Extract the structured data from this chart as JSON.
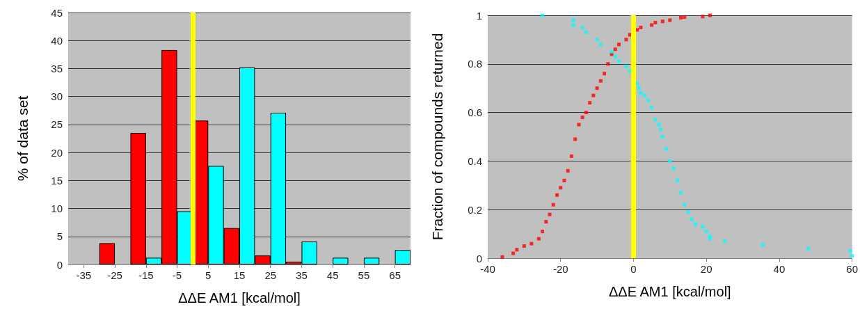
{
  "chart_data": [
    {
      "type": "bar",
      "xlabel": "ΔΔE AM1 [kcal/mol]",
      "ylabel": "% of data set",
      "x": [
        -35,
        -25,
        -15,
        -5,
        5,
        15,
        25,
        35,
        45,
        55,
        65
      ],
      "series": [
        {
          "color": "#ff0000",
          "values": [
            0,
            3.8,
            23.5,
            38.3,
            25.7,
            6.5,
            1.6,
            0.5,
            0,
            0,
            0
          ]
        },
        {
          "color": "#00ffff",
          "values": [
            0,
            0,
            1.2,
            9.5,
            17.6,
            35.2,
            27.1,
            4.1,
            1.2,
            1.2,
            2.6
          ]
        }
      ],
      "xlim": [
        -40,
        70
      ],
      "xticks": [
        -35,
        -25,
        -15,
        -5,
        5,
        15,
        25,
        35,
        45,
        55,
        65
      ],
      "ylim": [
        0,
        45
      ],
      "yticks": [
        0,
        5,
        10,
        15,
        20,
        25,
        30,
        35,
        40,
        45
      ],
      "ref_lines": [
        {
          "axis": "x",
          "value": 0,
          "color": "#ffff00"
        }
      ],
      "grid": "y"
    },
    {
      "type": "scatter",
      "xlabel": "ΔΔE AM1 [kcal/mol]",
      "ylabel": "Fraction of compounds returned",
      "marker": "square",
      "series": [
        {
          "color": "#ff0000",
          "x": [
            -36,
            -33,
            -32,
            -30,
            -28,
            -26,
            -25,
            -24,
            -23,
            -22,
            -21,
            -20,
            -19,
            -18,
            -17,
            -16,
            -15,
            -14,
            -13,
            -12,
            -11,
            -10,
            -9,
            -8,
            -7,
            -6,
            -5,
            -4,
            -2,
            -1,
            1,
            2,
            5,
            6,
            8,
            10,
            13,
            14,
            19,
            21
          ],
          "values": [
            0.005,
            0.02,
            0.035,
            0.05,
            0.06,
            0.08,
            0.11,
            0.15,
            0.18,
            0.22,
            0.26,
            0.29,
            0.32,
            0.36,
            0.42,
            0.49,
            0.55,
            0.58,
            0.6,
            0.64,
            0.67,
            0.7,
            0.73,
            0.76,
            0.8,
            0.84,
            0.86,
            0.88,
            0.9,
            0.92,
            0.94,
            0.95,
            0.96,
            0.97,
            0.975,
            0.98,
            0.99,
            0.993,
            0.995,
            1.0
          ]
        },
        {
          "color": "#00ffff",
          "x": [
            -25,
            -16.5,
            -16.5,
            -14,
            -13,
            -10,
            -9,
            -6,
            -5,
            -4,
            -2,
            -1,
            1,
            1.5,
            2,
            3,
            4,
            5,
            6,
            7,
            7.5,
            8,
            9,
            10,
            11,
            12,
            13,
            14,
            15,
            16,
            17,
            19,
            20,
            21,
            21,
            25,
            35.5,
            48,
            59.5,
            60
          ],
          "values": [
            1.0,
            0.98,
            0.96,
            0.95,
            0.93,
            0.9,
            0.88,
            0.85,
            0.83,
            0.81,
            0.79,
            0.77,
            0.72,
            0.7,
            0.68,
            0.67,
            0.65,
            0.62,
            0.57,
            0.55,
            0.53,
            0.5,
            0.45,
            0.4,
            0.37,
            0.32,
            0.27,
            0.22,
            0.19,
            0.16,
            0.14,
            0.13,
            0.11,
            0.09,
            0.08,
            0.07,
            0.055,
            0.04,
            0.03,
            0.01
          ]
        }
      ],
      "xlim": [
        -40,
        60
      ],
      "xticks": [
        -40,
        -20,
        0,
        20,
        40,
        60
      ],
      "ylim": [
        0,
        1
      ],
      "yticks": [
        0,
        0.2,
        0.4,
        0.6,
        0.8,
        1
      ],
      "ref_lines": [
        {
          "axis": "x",
          "value": 0,
          "color": "#ffff00"
        }
      ],
      "grid": "y"
    }
  ]
}
